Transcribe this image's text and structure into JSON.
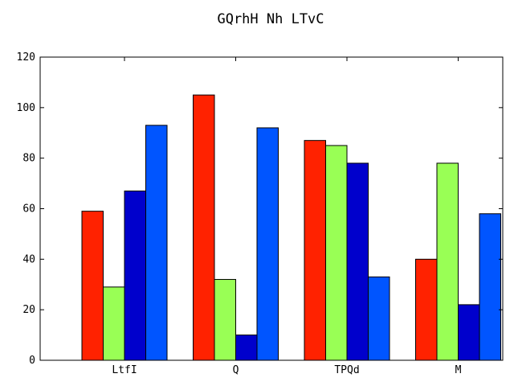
{
  "chart_data": {
    "type": "bar",
    "title": "GQrhH Nh LTvC",
    "xlabel": "",
    "ylabel": "",
    "categories": [
      "LtfI",
      "Q",
      "TPQd",
      "M"
    ],
    "ylim": [
      0,
      120
    ],
    "yticks": [
      0,
      20,
      40,
      60,
      80,
      100,
      120
    ],
    "grid": false,
    "series": [
      {
        "color": "#ff2200",
        "values": [
          59,
          105,
          87,
          40
        ]
      },
      {
        "color": "#99ff55",
        "values": [
          29,
          32,
          85,
          78
        ]
      },
      {
        "color": "#0000cc",
        "values": [
          67,
          10,
          78,
          22
        ]
      },
      {
        "color": "#0055ff",
        "values": [
          93,
          92,
          33,
          58
        ]
      }
    ]
  }
}
